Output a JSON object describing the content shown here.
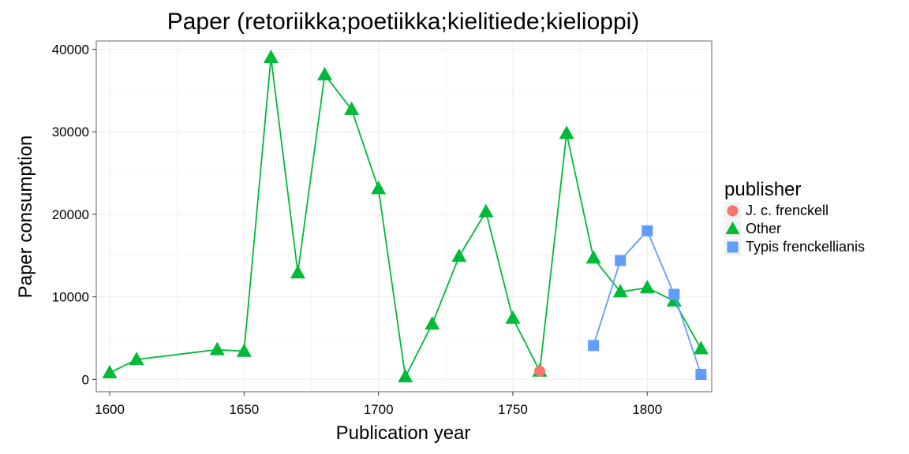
{
  "chart_data": {
    "type": "line",
    "title": "Paper (retoriikka;poetiikka;kielitiede;kielioppi)",
    "xlabel": "Publication year",
    "ylabel": "Paper consumption",
    "xlim": [
      1595,
      1824
    ],
    "ylim": [
      -1500,
      41000
    ],
    "xticks": [
      1600,
      1650,
      1700,
      1750,
      1800
    ],
    "yticks": [
      0,
      10000,
      20000,
      30000,
      40000
    ],
    "grid": true,
    "legend": {
      "title": "publisher",
      "position": "right"
    },
    "series": [
      {
        "name": "J. c. frenckell",
        "color": "#F8766D",
        "marker": "circle",
        "x": [
          1760
        ],
        "y": [
          1000
        ]
      },
      {
        "name": "Other",
        "color": "#00BA38",
        "marker": "triangle",
        "x": [
          1600,
          1610,
          1640,
          1650,
          1660,
          1670,
          1680,
          1690,
          1700,
          1710,
          1720,
          1730,
          1740,
          1750,
          1760,
          1770,
          1780,
          1790,
          1800,
          1810,
          1820
        ],
        "y": [
          800,
          2400,
          3600,
          3400,
          39000,
          12900,
          36900,
          32700,
          23100,
          300,
          6700,
          14900,
          20300,
          7400,
          1000,
          29800,
          14700,
          10600,
          11100,
          9500,
          3700
        ]
      },
      {
        "name": "Typis frenckellianis",
        "color": "#619CFF",
        "marker": "square",
        "x": [
          1780,
          1790,
          1800,
          1810,
          1820
        ],
        "y": [
          4100,
          14400,
          18000,
          10300,
          600
        ]
      }
    ]
  }
}
